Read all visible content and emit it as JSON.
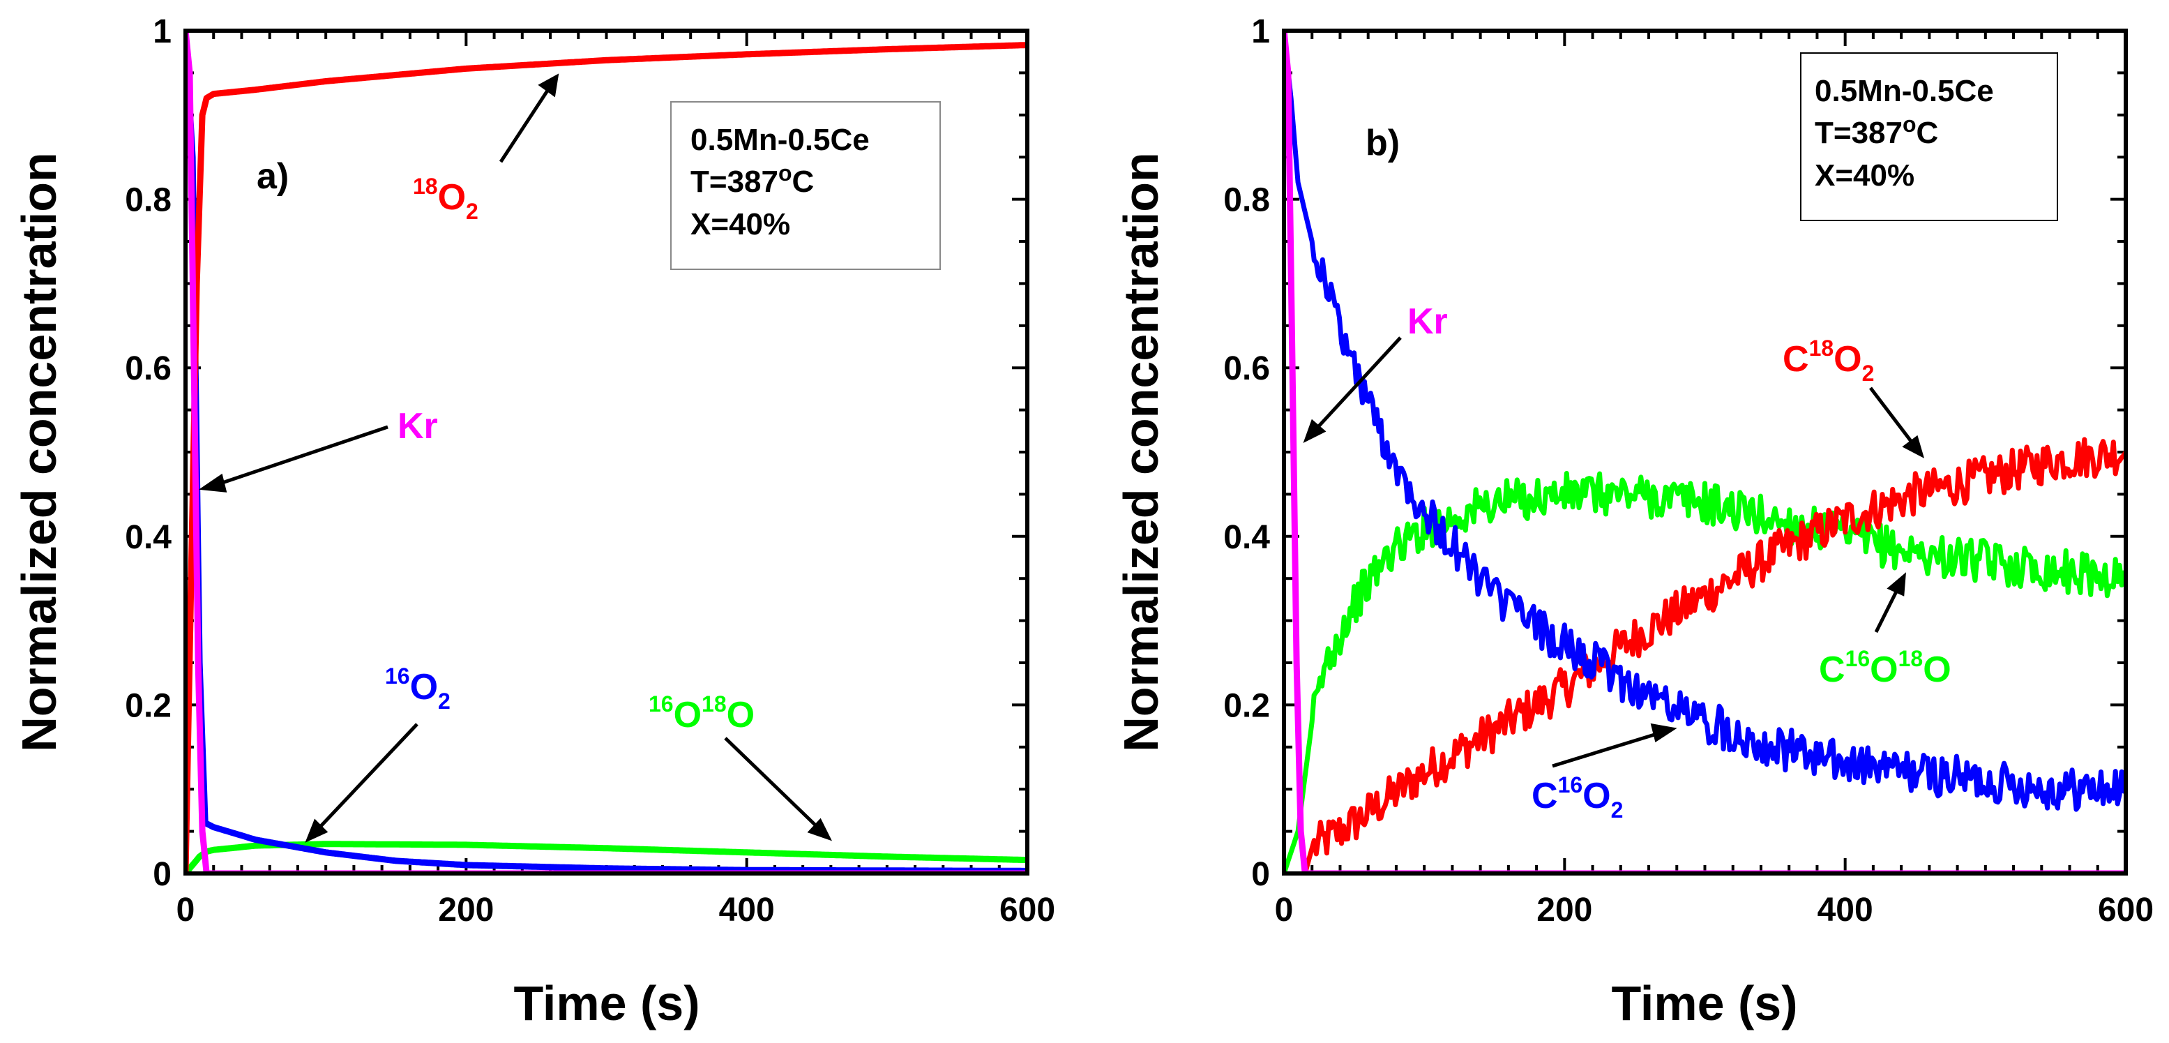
{
  "chart_data": [
    {
      "panel": "a)",
      "type": "line",
      "xlabel": "Time (s)",
      "ylabel": "Normalized concentration",
      "xlim": [
        0,
        600
      ],
      "ylim": [
        0,
        1
      ],
      "xticks": [
        "0",
        "200",
        "400",
        "600"
      ],
      "yticks": [
        "0",
        "0.2",
        "0.4",
        "0.6",
        "0.8",
        "1"
      ],
      "info_box": [
        "0.5Mn-0.5Ce",
        "T=387",
        "o",
        "C",
        "X=40%"
      ],
      "series": [
        {
          "name": "18O2",
          "label_sup": "18",
          "label_main": "O",
          "label_sub": "2",
          "color": "#ff0000",
          "x": [
            0,
            8,
            12,
            15,
            20,
            50,
            100,
            200,
            300,
            400,
            500,
            600
          ],
          "y": [
            0,
            0.7,
            0.9,
            0.92,
            0.925,
            0.93,
            0.94,
            0.955,
            0.965,
            0.972,
            0.978,
            0.983
          ]
        },
        {
          "name": "16O2",
          "label_sup": "16",
          "label_main": "O",
          "label_sub": "2",
          "color": "#0000ff",
          "x": [
            0,
            5,
            10,
            14,
            20,
            50,
            100,
            150,
            200,
            300,
            400,
            600
          ],
          "y": [
            1.0,
            0.85,
            0.25,
            0.06,
            0.055,
            0.04,
            0.025,
            0.015,
            0.01,
            0.006,
            0.004,
            0.003
          ]
        },
        {
          "name": "16O18O",
          "label_sup1": "16",
          "label_main1": "O",
          "label_sup2": "18",
          "label_main2": "O",
          "color": "#00ff00",
          "x": [
            0,
            10,
            15,
            20,
            50,
            100,
            200,
            300,
            400,
            500,
            600
          ],
          "y": [
            0,
            0.02,
            0.026,
            0.028,
            0.033,
            0.035,
            0.034,
            0.03,
            0.025,
            0.02,
            0.016
          ]
        },
        {
          "name": "Kr",
          "label": "Kr",
          "color": "#ff00ff",
          "x": [
            0,
            3,
            6,
            9,
            12,
            15,
            600
          ],
          "y": [
            1.0,
            0.95,
            0.6,
            0.25,
            0.05,
            0.0,
            0.0
          ]
        }
      ]
    },
    {
      "panel": "b)",
      "type": "line",
      "xlabel": "Time (s)",
      "ylabel": "Normalized concentration",
      "xlim": [
        0,
        600
      ],
      "ylim": [
        0,
        1
      ],
      "xticks": [
        "0",
        "200",
        "400",
        "600"
      ],
      "yticks": [
        "0",
        "0.2",
        "0.4",
        "0.6",
        "0.8",
        "1"
      ],
      "info_box": [
        "0.5Mn-0.5Ce",
        "T=387",
        "o",
        "C",
        "X=40%"
      ],
      "series": [
        {
          "name": "C18O2",
          "label_main": "C",
          "label_sup": "18",
          "label_main2": "O",
          "label_sub": "2",
          "color": "#ff0000",
          "x": [
            15,
            20,
            50,
            100,
            150,
            200,
            250,
            300,
            350,
            400,
            450,
            500,
            550,
            600
          ],
          "y": [
            0.0,
            0.03,
            0.06,
            0.12,
            0.17,
            0.22,
            0.28,
            0.33,
            0.38,
            0.42,
            0.45,
            0.47,
            0.49,
            0.5
          ]
        },
        {
          "name": "C16O18O",
          "label_main": "C",
          "label_sup": "16",
          "label_main2": "O",
          "label_sup2": "18",
          "label_main3": "O",
          "color": "#00ff00",
          "x": [
            0,
            10,
            20,
            30,
            50,
            75,
            100,
            150,
            200,
            250,
            300,
            350,
            400,
            450,
            500,
            550,
            600
          ],
          "y": [
            0,
            0.05,
            0.18,
            0.25,
            0.32,
            0.38,
            0.41,
            0.44,
            0.45,
            0.45,
            0.44,
            0.42,
            0.4,
            0.38,
            0.37,
            0.36,
            0.35
          ]
        },
        {
          "name": "C16O2",
          "label_main": "C",
          "label_sup": "16",
          "label_main2": "O",
          "label_sub": "2",
          "color": "#0000ff",
          "x": [
            0,
            5,
            10,
            20,
            50,
            75,
            100,
            150,
            200,
            250,
            300,
            350,
            400,
            450,
            500,
            550,
            600
          ],
          "y": [
            1.0,
            0.92,
            0.82,
            0.75,
            0.6,
            0.5,
            0.43,
            0.33,
            0.27,
            0.22,
            0.18,
            0.15,
            0.13,
            0.12,
            0.11,
            0.1,
            0.1
          ]
        },
        {
          "name": "Kr",
          "label": "Kr",
          "color": "#ff00ff",
          "x": [
            0,
            3,
            6,
            9,
            12,
            15,
            600
          ],
          "y": [
            1.0,
            0.95,
            0.6,
            0.25,
            0.05,
            0.0,
            0.0
          ]
        }
      ]
    }
  ]
}
